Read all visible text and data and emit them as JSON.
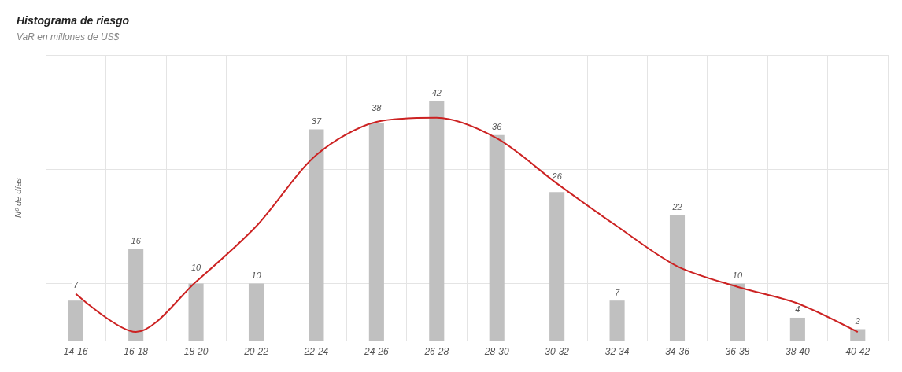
{
  "chart_data": {
    "type": "bar",
    "title": "Histograma de riesgo",
    "subtitle": "VaR en millones de US$",
    "ylabel": "Nº de días",
    "categories": [
      "14-16",
      "16-18",
      "18-20",
      "20-22",
      "22-24",
      "24-26",
      "26-28",
      "28-30",
      "30-32",
      "32-34",
      "34-36",
      "36-38",
      "38-40",
      "40-42"
    ],
    "series": [
      {
        "color": "#c0c0c0",
        "values": [
          7,
          16,
          10,
          10,
          37,
          38,
          42,
          36,
          26,
          7,
          22,
          10,
          4,
          2
        ],
        "value_labels": [
          "7",
          "16",
          "10",
          "10",
          "37",
          "38",
          "42",
          "36",
          "26",
          "7",
          "22",
          "10",
          "4",
          "2"
        ]
      },
      {
        "type": "line",
        "color": "#cc2222",
        "values": [
          8.2,
          1.5,
          10.3,
          20,
          32.5,
          38.3,
          39,
          35.4,
          27.5,
          20,
          13,
          9.4,
          6.5,
          1.5
        ]
      }
    ],
    "grid": true,
    "marker": "none",
    "line_style": "solid",
    "tick_labels": "x"
  }
}
